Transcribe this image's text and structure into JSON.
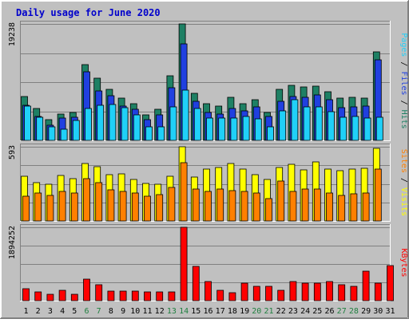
{
  "chart_data": {
    "type": "bar",
    "title": "Daily usage for June 2020",
    "categories": [
      "1",
      "2",
      "3",
      "4",
      "5",
      "6",
      "7",
      "8",
      "9",
      "10",
      "11",
      "12",
      "13",
      "14",
      "15",
      "16",
      "17",
      "18",
      "19",
      "20",
      "21",
      "22",
      "23",
      "24",
      "25",
      "26",
      "27",
      "28",
      "29",
      "30",
      "31"
    ],
    "weekend_days": [
      6,
      7,
      13,
      14,
      20,
      21,
      27,
      28
    ],
    "panels": [
      {
        "name": "pages-files-hits",
        "ymax_label": "19238",
        "ymax": 19238,
        "axis_labels": [
          "Pages",
          "Files",
          "Hits"
        ],
        "series": [
          {
            "name": "Hits",
            "color": "#1e8064",
            "values": [
              7300,
              5300,
              3400,
              4400,
              4600,
              12500,
              10300,
              8400,
              7000,
              6100,
              4200,
              5200,
              10700,
              19238,
              7800,
              6000,
              5700,
              7100,
              6100,
              6700,
              4600,
              8400,
              9100,
              8800,
              9000,
              8100,
              7000,
              7100,
              7000,
              14600,
              0
            ]
          },
          {
            "name": "Files",
            "color": "#2040e0",
            "values": [
              5800,
              3900,
              2500,
              3700,
              3800,
              11300,
              8200,
              7400,
              5700,
              5200,
              3400,
              4200,
              8700,
              16000,
              6500,
              4600,
              4300,
              5300,
              4900,
              5500,
              3900,
              6400,
              7200,
              7100,
              7500,
              6700,
              5400,
              5600,
              5700,
              13300,
              0
            ]
          },
          {
            "name": "Pages",
            "color": "#20d0f8",
            "values": [
              5700,
              3800,
              2300,
              1800,
              3300,
              5300,
              5800,
              5900,
              5400,
              4200,
              2300,
              2300,
              5500,
              8300,
              5300,
              3700,
              3700,
              3700,
              3900,
              3500,
              2300,
              4900,
              6700,
              5500,
              5600,
              4700,
              3800,
              3900,
              3700,
              3800,
              0
            ]
          }
        ]
      },
      {
        "name": "sites-visits",
        "ymax_label": "593",
        "ymax": 593,
        "axis_labels": [
          "Sites",
          "Visits"
        ],
        "series": [
          {
            "name": "Visits",
            "color": "#ffff00",
            "values": [
              355,
              308,
              292,
              363,
              339,
              461,
              431,
              372,
              378,
              330,
              297,
              291,
              355,
              593,
              352,
              415,
              430,
              458,
              412,
              370,
              334,
              430,
              450,
              408,
              470,
              412,
              404,
              414,
              421,
              578,
              0
            ]
          },
          {
            "name": "Sites",
            "color": "#ff8000",
            "values": [
              198,
              224,
              205,
              233,
              221,
              341,
              307,
              251,
              234,
              226,
              196,
              209,
              265,
              466,
              254,
              239,
              252,
              242,
              239,
              224,
              178,
              322,
              239,
              256,
              253,
              223,
              205,
              218,
              224,
              412,
              0
            ]
          }
        ]
      },
      {
        "name": "kbytes",
        "ymax_label": "1894252",
        "ymax": 1894252,
        "axis_labels": [
          "KBytes"
        ],
        "series": [
          {
            "name": "KBytes",
            "color": "#ff0000",
            "values": [
              301000,
              223000,
              157000,
              262000,
              157000,
              565000,
              406000,
              249000,
              249000,
              249000,
              223000,
              223000,
              223000,
              1894252,
              888000,
              497000,
              262000,
              197000,
              459000,
              380000,
              367000,
              262000,
              485000,
              459000,
              459000,
              485000,
              406000,
              380000,
              772000,
              459000,
              915000
            ]
          }
        ]
      }
    ]
  }
}
